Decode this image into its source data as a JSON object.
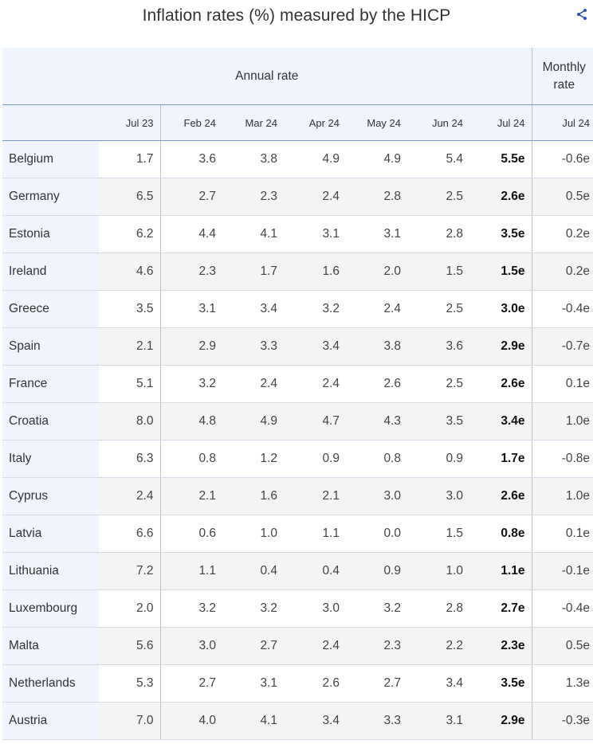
{
  "page": {
    "title": "Inflation rates (%) measured by the HICP",
    "share_icon": "share-icon",
    "accent_color": "#2a4fb8"
  },
  "table": {
    "group_headers": {
      "annual": "Annual rate",
      "monthly_line1": "Monthly",
      "monthly_line2": "rate"
    },
    "columns": [
      "",
      "Jul 23",
      "Feb 24",
      "Mar 24",
      "Apr 24",
      "May 24",
      "Jun 24",
      "Jul 24",
      "Jul 24"
    ],
    "rows": [
      {
        "country": "Belgium",
        "values": [
          "1.7",
          "3.6",
          "3.8",
          "4.9",
          "4.9",
          "5.4",
          "5.5e",
          "-0.6e"
        ]
      },
      {
        "country": "Germany",
        "values": [
          "6.5",
          "2.7",
          "2.3",
          "2.4",
          "2.8",
          "2.5",
          "2.6e",
          "0.5e"
        ]
      },
      {
        "country": "Estonia",
        "values": [
          "6.2",
          "4.4",
          "4.1",
          "3.1",
          "3.1",
          "2.8",
          "3.5e",
          "0.2e"
        ]
      },
      {
        "country": "Ireland",
        "values": [
          "4.6",
          "2.3",
          "1.7",
          "1.6",
          "2.0",
          "1.5",
          "1.5e",
          "0.2e"
        ]
      },
      {
        "country": "Greece",
        "values": [
          "3.5",
          "3.1",
          "3.4",
          "3.2",
          "2.4",
          "2.5",
          "3.0e",
          "-0.4e"
        ]
      },
      {
        "country": "Spain",
        "values": [
          "2.1",
          "2.9",
          "3.3",
          "3.4",
          "3.8",
          "3.6",
          "2.9e",
          "-0.7e"
        ]
      },
      {
        "country": "France",
        "values": [
          "5.1",
          "3.2",
          "2.4",
          "2.4",
          "2.6",
          "2.5",
          "2.6e",
          "0.1e"
        ]
      },
      {
        "country": "Croatia",
        "values": [
          "8.0",
          "4.8",
          "4.9",
          "4.7",
          "4.3",
          "3.5",
          "3.4e",
          "1.0e"
        ]
      },
      {
        "country": "Italy",
        "values": [
          "6.3",
          "0.8",
          "1.2",
          "0.9",
          "0.8",
          "0.9",
          "1.7e",
          "-0.8e"
        ]
      },
      {
        "country": "Cyprus",
        "values": [
          "2.4",
          "2.1",
          "1.6",
          "2.1",
          "3.0",
          "3.0",
          "2.6e",
          "1.0e"
        ]
      },
      {
        "country": "Latvia",
        "values": [
          "6.6",
          "0.6",
          "1.0",
          "1.1",
          "0.0",
          "1.5",
          "0.8e",
          "0.1e"
        ]
      },
      {
        "country": "Lithuania",
        "values": [
          "7.2",
          "1.1",
          "0.4",
          "0.4",
          "0.9",
          "1.0",
          "1.1e",
          "-0.1e"
        ]
      },
      {
        "country": "Luxembourg",
        "values": [
          "2.0",
          "3.2",
          "3.2",
          "3.0",
          "3.2",
          "2.8",
          "2.7e",
          "-0.4e"
        ]
      },
      {
        "country": "Malta",
        "values": [
          "5.6",
          "3.0",
          "2.7",
          "2.4",
          "2.3",
          "2.2",
          "2.3e",
          "0.5e"
        ]
      },
      {
        "country": "Netherlands",
        "values": [
          "5.3",
          "2.7",
          "3.1",
          "2.6",
          "2.7",
          "3.4",
          "3.5e",
          "1.3e"
        ]
      },
      {
        "country": "Austria",
        "values": [
          "7.0",
          "4.0",
          "4.1",
          "3.4",
          "3.3",
          "3.1",
          "2.9e",
          "-0.3e"
        ]
      }
    ]
  }
}
